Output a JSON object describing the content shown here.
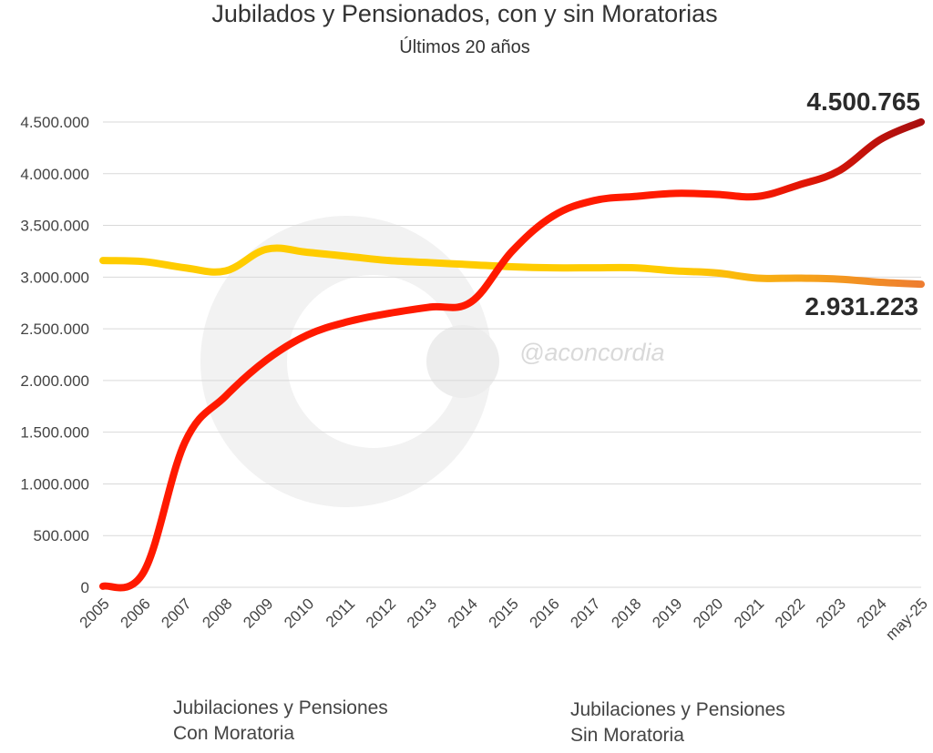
{
  "chart_data": {
    "type": "line",
    "title": "Jubilados y Pensionados, con y sin Moratorias",
    "subtitle": "Últimos 20 años",
    "categories": [
      "2005",
      "2006",
      "2007",
      "2008",
      "2009",
      "2010",
      "2011",
      "2012",
      "2013",
      "2014",
      "2015",
      "2016",
      "2017",
      "2018",
      "2019",
      "2020",
      "2021",
      "2022",
      "2023",
      "2024",
      "may-25"
    ],
    "ylim": [
      0,
      4500000
    ],
    "yticks": [
      0,
      500000,
      1000000,
      1500000,
      2000000,
      2500000,
      3000000,
      3500000,
      4000000,
      4500000
    ],
    "ytick_labels": [
      "0",
      "500.000",
      "1.000.000",
      "1.500.000",
      "2.000.000",
      "2.500.000",
      "3.000.000",
      "3.500.000",
      "4.000.000",
      "4.500.000"
    ],
    "grid": true,
    "legend_position": "bottom",
    "series": [
      {
        "name": "Jubilaciones y Pensiones Con Moratoria",
        "legend_lines": [
          "Jubilaciones y Pensiones",
          "Con Moratoria"
        ],
        "color_start": "#ff1a00",
        "color_end": "#a80f0f",
        "values": [
          10000,
          150000,
          1400000,
          1850000,
          2200000,
          2440000,
          2570000,
          2650000,
          2710000,
          2760000,
          3250000,
          3590000,
          3740000,
          3780000,
          3810000,
          3800000,
          3780000,
          3890000,
          4030000,
          4330000,
          4500765
        ],
        "end_label": "4.500.765"
      },
      {
        "name": "Jubilaciones y Pensiones Sin Moratoria",
        "legend_lines": [
          "Jubilaciones y Pensiones",
          "Sin Moratoria"
        ],
        "color_start": "#ffcc00",
        "color_end": "#ee7d30",
        "values": [
          3160000,
          3150000,
          3090000,
          3060000,
          3270000,
          3240000,
          3200000,
          3160000,
          3140000,
          3120000,
          3100000,
          3090000,
          3090000,
          3090000,
          3060000,
          3040000,
          2990000,
          2990000,
          2980000,
          2950000,
          2931223
        ],
        "end_label": "2.931.223"
      }
    ],
    "watermark": "@aconcordia"
  }
}
